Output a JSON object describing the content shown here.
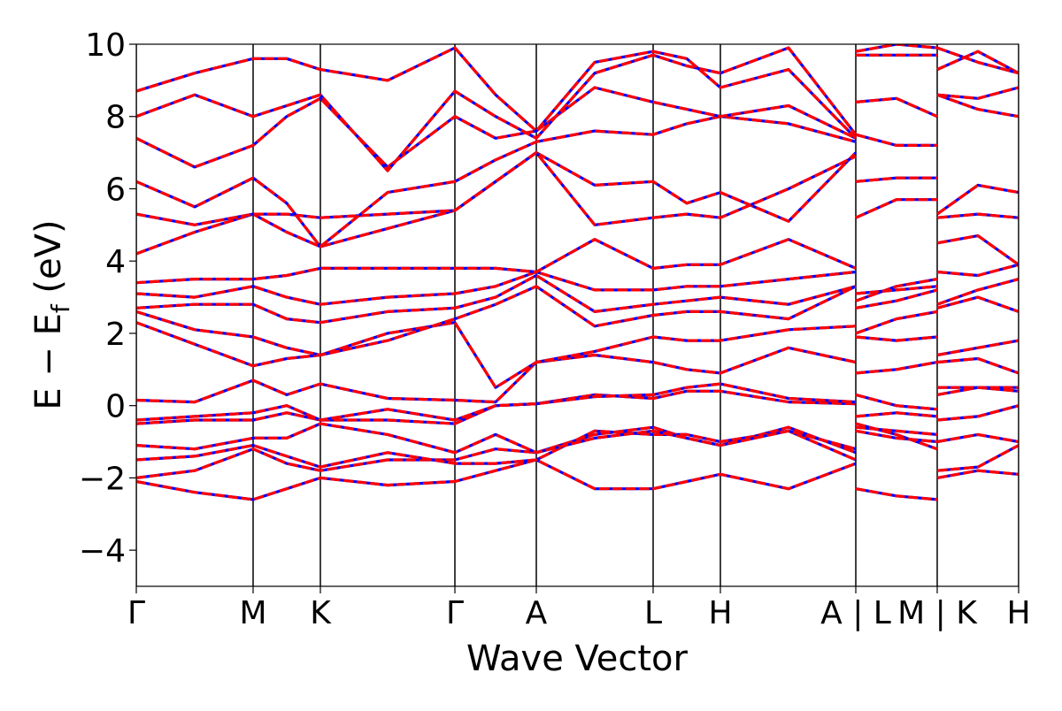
{
  "chart_data": {
    "type": "line",
    "ylabel_parts": [
      "E − E",
      "f",
      " (eV)"
    ],
    "xlabel": "Wave Vector",
    "xlim": [
      0,
      9.97
    ],
    "ylim": [
      -5,
      10
    ],
    "yticks": [
      {
        "value": -4,
        "label": "−4"
      },
      {
        "value": -2,
        "label": "−2"
      },
      0,
      2,
      4,
      6,
      8,
      10
    ],
    "xticks": [
      {
        "value": 0,
        "label": "Γ"
      },
      {
        "value": 1.32,
        "label": "M"
      },
      {
        "value": 2.08,
        "label": "K"
      },
      {
        "value": 3.6,
        "label": "Γ"
      },
      {
        "value": 4.52,
        "label": "A"
      },
      {
        "value": 5.84,
        "label": "L"
      },
      {
        "value": 6.6,
        "label": "H"
      },
      {
        "value": 8.13,
        "label": "A | L"
      },
      {
        "value": 9.05,
        "label": "M | K"
      },
      {
        "value": 9.97,
        "label": "H"
      }
    ],
    "line_color": "#ff0000",
    "overlay_color": "#0000ff",
    "x": [
      0,
      0.66,
      1.32,
      1.7,
      2.08,
      2.84,
      3.6,
      4.06,
      4.52,
      5.18,
      5.84,
      6.22,
      6.6,
      7.37,
      8.13,
      8.13,
      8.13,
      8.59,
      9.05,
      9.05,
      9.05,
      9.51,
      9.97
    ],
    "bands": [
      [
        -2.1,
        -2.4,
        -2.6,
        -2.3,
        -2.0,
        -2.2,
        -2.1,
        -1.8,
        -1.5,
        -2.3,
        -2.3,
        -2.1,
        -1.9,
        -2.3,
        -1.6,
        null,
        -2.3,
        -2.5,
        -2.6,
        null,
        -2.0,
        -1.8,
        -1.9
      ],
      [
        -2.0,
        -1.8,
        -1.2,
        -1.6,
        -1.8,
        -1.5,
        -1.5,
        -1.2,
        -1.3,
        -0.8,
        -0.6,
        -0.9,
        -1.1,
        -0.6,
        -1.3,
        null,
        -0.5,
        -0.8,
        -1.2,
        null,
        -1.8,
        -1.7,
        -1.1
      ],
      [
        -1.5,
        -1.4,
        -1.1,
        -1.4,
        -1.7,
        -1.3,
        -1.6,
        -1.6,
        -1.5,
        -0.7,
        -0.8,
        -0.8,
        -1.0,
        -0.7,
        -1.5,
        null,
        -0.7,
        -0.9,
        -1.0,
        null,
        -1.0,
        -0.8,
        -1.0
      ],
      [
        -1.1,
        -1.2,
        -0.9,
        -0.9,
        -0.5,
        -0.8,
        -1.3,
        -0.8,
        -1.3,
        -0.9,
        -0.7,
        -0.9,
        -1.1,
        -0.7,
        -1.2,
        null,
        -0.6,
        -0.7,
        -0.8,
        null,
        -0.4,
        -0.3,
        0.0
      ],
      [
        -0.5,
        -0.4,
        -0.4,
        -0.2,
        -0.4,
        -0.4,
        -0.5,
        0.0,
        0.05,
        0.3,
        0.2,
        0.4,
        0.4,
        0.1,
        0.05,
        null,
        -0.3,
        -0.2,
        -0.3,
        null,
        0.3,
        0.5,
        0.5
      ],
      [
        -0.4,
        -0.3,
        -0.2,
        0.0,
        -0.4,
        -0.1,
        -0.4,
        0.0,
        0.05,
        0.25,
        0.3,
        0.5,
        0.6,
        0.2,
        0.1,
        null,
        0.3,
        0.0,
        -0.1,
        null,
        0.5,
        0.5,
        0.4
      ],
      [
        0.15,
        0.1,
        0.7,
        0.3,
        0.6,
        0.2,
        0.15,
        0.1,
        1.2,
        1.4,
        1.2,
        1.0,
        0.9,
        1.6,
        1.2,
        null,
        0.9,
        1.0,
        1.2,
        null,
        1.2,
        1.3,
        0.9
      ],
      [
        2.3,
        1.7,
        1.1,
        1.3,
        1.4,
        2.0,
        2.3,
        0.5,
        1.2,
        1.5,
        1.9,
        1.8,
        1.8,
        2.1,
        2.2,
        null,
        1.9,
        1.8,
        1.9,
        null,
        1.4,
        1.6,
        1.8
      ],
      [
        2.6,
        2.1,
        1.9,
        1.6,
        1.4,
        1.8,
        2.4,
        2.8,
        3.3,
        2.2,
        2.5,
        2.6,
        2.6,
        2.4,
        3.3,
        null,
        2.0,
        2.4,
        2.6,
        null,
        2.7,
        3.0,
        2.6
      ],
      [
        2.7,
        2.8,
        2.8,
        2.4,
        2.3,
        2.6,
        2.7,
        3.0,
        3.6,
        2.6,
        2.8,
        2.9,
        3.0,
        2.8,
        3.3,
        null,
        2.7,
        2.9,
        3.2,
        null,
        2.8,
        3.2,
        3.5
      ],
      [
        3.1,
        3.0,
        3.3,
        3.0,
        2.8,
        3.0,
        3.1,
        3.3,
        3.7,
        3.2,
        3.2,
        3.3,
        3.3,
        3.5,
        3.7,
        null,
        2.9,
        3.3,
        3.5,
        null,
        3.7,
        3.6,
        3.9
      ],
      [
        3.4,
        3.5,
        3.5,
        3.6,
        3.8,
        3.8,
        3.8,
        3.8,
        3.7,
        4.6,
        3.8,
        3.9,
        3.9,
        4.6,
        3.8,
        null,
        3.1,
        3.2,
        3.3,
        null,
        4.5,
        4.7,
        3.9
      ],
      [
        4.2,
        4.8,
        5.3,
        4.8,
        4.4,
        4.9,
        5.4,
        6.2,
        7.0,
        6.1,
        6.2,
        5.6,
        5.9,
        5.1,
        7.0,
        null,
        5.2,
        5.7,
        5.7,
        null,
        5.2,
        5.3,
        5.2
      ],
      [
        5.3,
        5.0,
        5.3,
        5.3,
        5.2,
        5.3,
        5.4,
        6.2,
        7.0,
        5.0,
        5.2,
        5.3,
        5.2,
        6.0,
        6.9,
        null,
        6.2,
        6.3,
        6.3,
        null,
        5.3,
        6.1,
        5.9
      ],
      [
        6.2,
        5.5,
        6.3,
        5.6,
        4.4,
        5.9,
        6.2,
        6.8,
        7.3,
        7.6,
        7.5,
        7.8,
        8.0,
        7.8,
        7.3,
        null,
        7.5,
        7.2,
        7.2,
        null,
        8.6,
        8.2,
        8.0
      ],
      [
        7.4,
        6.6,
        7.2,
        8.0,
        8.5,
        6.6,
        8.0,
        7.4,
        7.6,
        8.8,
        8.4,
        8.2,
        8.0,
        8.3,
        7.4,
        null,
        8.4,
        8.5,
        8.0,
        null,
        8.6,
        8.5,
        8.8
      ],
      [
        8.0,
        8.6,
        8.0,
        8.3,
        8.6,
        6.5,
        8.7,
        8.0,
        7.4,
        9.2,
        9.7,
        9.4,
        9.2,
        9.9,
        7.5,
        null,
        9.7,
        9.7,
        9.7,
        null,
        9.3,
        9.8,
        9.2
      ],
      [
        8.7,
        9.2,
        9.6,
        9.6,
        9.3,
        9.0,
        9.9,
        8.6,
        7.6,
        9.5,
        9.8,
        9.6,
        8.8,
        9.3,
        7.4,
        null,
        9.8,
        10.0,
        9.9,
        null,
        9.9,
        9.5,
        9.2
      ]
    ]
  }
}
